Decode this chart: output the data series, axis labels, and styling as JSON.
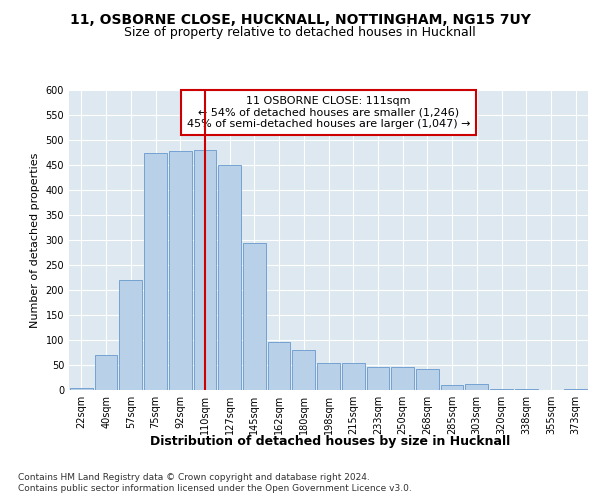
{
  "title1": "11, OSBORNE CLOSE, HUCKNALL, NOTTINGHAM, NG15 7UY",
  "title2": "Size of property relative to detached houses in Hucknall",
  "xlabel": "Distribution of detached houses by size in Hucknall",
  "ylabel": "Number of detached properties",
  "categories": [
    "22sqm",
    "40sqm",
    "57sqm",
    "75sqm",
    "92sqm",
    "110sqm",
    "127sqm",
    "145sqm",
    "162sqm",
    "180sqm",
    "198sqm",
    "215sqm",
    "233sqm",
    "250sqm",
    "268sqm",
    "285sqm",
    "303sqm",
    "320sqm",
    "338sqm",
    "355sqm",
    "373sqm"
  ],
  "values": [
    5,
    70,
    220,
    475,
    478,
    480,
    450,
    295,
    97,
    80,
    55,
    55,
    47,
    47,
    42,
    10,
    12,
    3,
    2,
    1,
    2
  ],
  "bar_color": "#b8d0e8",
  "bar_edge_color": "#6699cc",
  "vline_color": "#cc0000",
  "vline_x_index": 5,
  "annotation_box_text": "11 OSBORNE CLOSE: 111sqm\n← 54% of detached houses are smaller (1,246)\n45% of semi-detached houses are larger (1,047) →",
  "annotation_box_color": "#cc0000",
  "ylim": [
    0,
    600
  ],
  "yticks": [
    0,
    50,
    100,
    150,
    200,
    250,
    300,
    350,
    400,
    450,
    500,
    550,
    600
  ],
  "fig_bg_color": "#ffffff",
  "plot_bg_color": "#dde8f0",
  "grid_color": "#ffffff",
  "footnote1": "Contains HM Land Registry data © Crown copyright and database right 2024.",
  "footnote2": "Contains public sector information licensed under the Open Government Licence v3.0.",
  "title1_fontsize": 10,
  "title2_fontsize": 9,
  "xlabel_fontsize": 9,
  "ylabel_fontsize": 8,
  "tick_fontsize": 7,
  "annot_fontsize": 8,
  "footnote_fontsize": 6.5
}
